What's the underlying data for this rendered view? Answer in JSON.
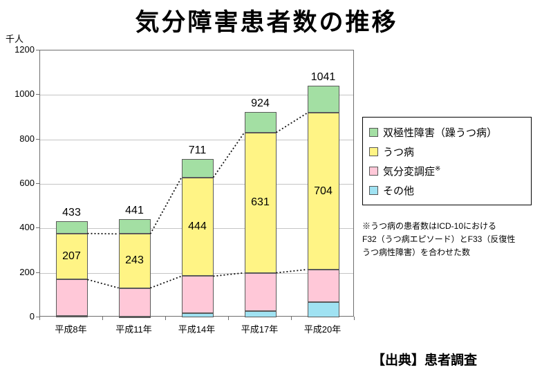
{
  "title": "気分障害患者数の推移",
  "y_axis": {
    "unit": "千人"
  },
  "source": "【出典】患者調査",
  "note": "※うつ病の患者数はICD-10における\nF32（うつ病エピソード）とF33（反復性\nうつ病性障害）を合わせた数",
  "legend": {
    "items": [
      {
        "label": "双極性障害（躁うつ病）",
        "color": "#A3DFA3"
      },
      {
        "label": "うつ病",
        "color": "#FFF485"
      },
      {
        "label": "気分変調症",
        "sup": "※",
        "color": "#FFC8D8"
      },
      {
        "label": "その他",
        "color": "#A0E2F2"
      }
    ]
  },
  "chart_data": {
    "type": "bar",
    "stacked": true,
    "title": "気分障害患者数の推移",
    "xlabel": "",
    "ylabel": "千人",
    "ylim": [
      0,
      1200
    ],
    "ytick_interval": 200,
    "grid": true,
    "legend_position": "right",
    "categories": [
      "平成8年",
      "平成11年",
      "平成14年",
      "平成17年",
      "平成20年"
    ],
    "series": [
      {
        "name": "その他",
        "color": "#A0E2F2",
        "values": [
          5,
          4,
          18,
          28,
          68
        ]
      },
      {
        "name": "気分変調症※",
        "color": "#FFC8D8",
        "values": [
          165,
          128,
          167,
          172,
          147
        ]
      },
      {
        "name": "うつ病",
        "color": "#FFF485",
        "values": [
          207,
          243,
          444,
          631,
          704
        ],
        "show_value_labels": true
      },
      {
        "name": "双極性障害（躁うつ病）",
        "color": "#A3DFA3",
        "values": [
          56,
          66,
          82,
          93,
          122
        ]
      }
    ],
    "totals": [
      433,
      441,
      711,
      924,
      1041
    ],
    "series_connector_lines_after": [
      1,
      2
    ]
  }
}
